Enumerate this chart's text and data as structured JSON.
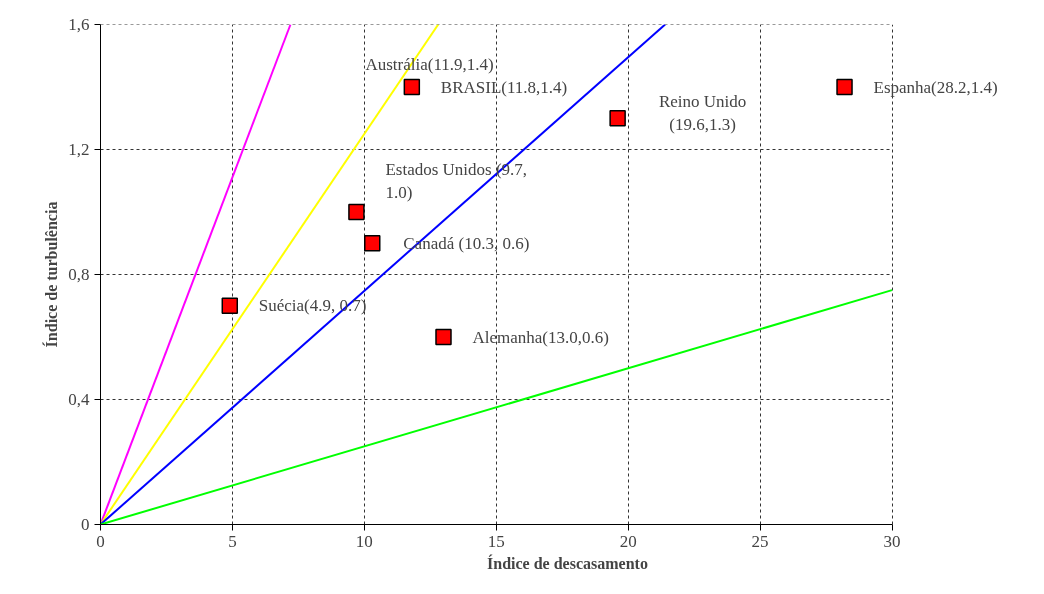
{
  "chart_data": {
    "type": "scatter",
    "xlabel": "Índice de descasamento",
    "ylabel": "Índice de turbulência",
    "xlim": [
      0,
      30
    ],
    "ylim": [
      0,
      1.6
    ],
    "xticks": [
      0,
      5,
      10,
      15,
      20,
      25,
      30
    ],
    "yticks": [
      0,
      {
        "value": 0.4,
        "label": "0,4"
      },
      {
        "value": 0.8,
        "label": "0,8"
      },
      {
        "value": 1.2,
        "label": "1,2"
      },
      {
        "value": 1.6,
        "label": "1,6"
      }
    ],
    "grid": true,
    "series": [
      {
        "type": "line",
        "marker": "none",
        "color": "#ff00ff",
        "x": [
          0,
          7.2
        ],
        "values": [
          0,
          1.6
        ]
      },
      {
        "type": "line",
        "marker": "none",
        "color": "#ffff00",
        "x": [
          0,
          12.8
        ],
        "values": [
          0,
          1.6
        ]
      },
      {
        "type": "line",
        "marker": "none",
        "color": "#0000ff",
        "x": [
          0,
          21.4
        ],
        "values": [
          0,
          1.6
        ]
      },
      {
        "type": "line",
        "marker": "none",
        "color": "#00ff00",
        "x": [
          0,
          30
        ],
        "values": [
          0,
          0.75
        ]
      },
      {
        "marker": "square",
        "color": "#ff0000",
        "x": [
          4.9,
          9.7,
          10.3,
          11.8,
          13.0,
          19.6,
          28.2
        ],
        "values": [
          0.7,
          1.0,
          0.9,
          1.4,
          0.6,
          1.3,
          1.4
        ]
      }
    ],
    "annotations": [
      {
        "text": "Suécia(4.9, 0.7)",
        "x": 4.9,
        "y": 0.7
      },
      {
        "text": "Estados Unidos (9.7,\n1.0)",
        "x": 9.7,
        "y": 1.0
      },
      {
        "text": "Canadá (10.3, 0.6)",
        "x": 10.3,
        "y": 0.9
      },
      {
        "text": "Austrália(11.9,1.4)",
        "x": 11.9,
        "y": 1.4
      },
      {
        "text": "BRASIL(11.8,1.4)",
        "x": 11.8,
        "y": 1.4
      },
      {
        "text": "Alemanha(13.0,0.6)",
        "x": 13.0,
        "y": 0.6
      },
      {
        "text": "Reino Unido\n(19.6,1.3)",
        "x": 19.6,
        "y": 1.3
      },
      {
        "text": "Espanha(28.2,1.4)",
        "x": 28.2,
        "y": 1.4
      }
    ]
  }
}
